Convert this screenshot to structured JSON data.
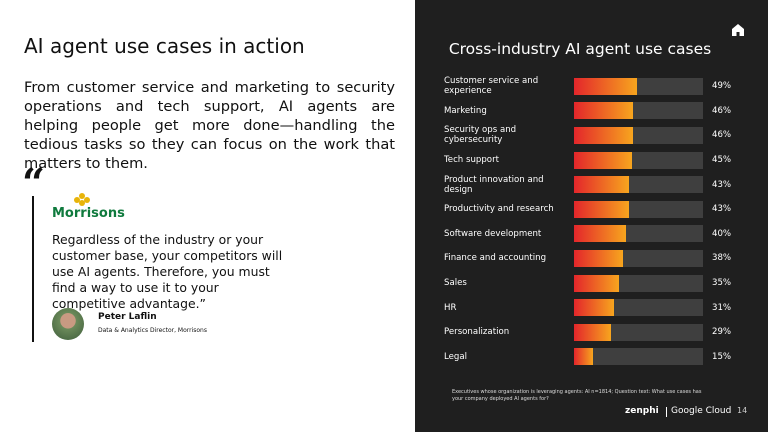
{
  "slide": {
    "title": "AI agent use cases in action",
    "body": "From customer service and marketing to security operations and tech support, AI agents are helping people get more done—handling the tedious tasks so they can focus on the work that matters to them.",
    "quote_mark": "“",
    "logo": "Morrisons",
    "quote": "Regardless of the industry or your customer base, your competitors will use AI agents. Therefore, you must find a way to use it to your competitive advantage.”",
    "name": "Peter Laflin",
    "role": "Data & Analytics Director, Morrisons"
  },
  "chart_data": {
    "type": "bar",
    "orientation": "horizontal",
    "title": "Cross-industry AI agent use cases",
    "categories": [
      "Customer service and experience",
      "Marketing",
      "Security ops and cybersecurity",
      "Tech support",
      "Product innovation and design",
      "Productivity and research",
      "Software development",
      "Finance and accounting",
      "Sales",
      "HR",
      "Personalization",
      "Legal"
    ],
    "values": [
      49,
      46,
      46,
      45,
      43,
      43,
      40,
      38,
      35,
      31,
      29,
      15
    ],
    "value_labels": [
      "49%",
      "46%",
      "46%",
      "45%",
      "43%",
      "43%",
      "40%",
      "38%",
      "35%",
      "31%",
      "29%",
      "15%"
    ],
    "xlim": [
      0,
      100
    ],
    "colors": [
      "#e3262b",
      "#f7a51e"
    ],
    "track_color": "#3f3f3f",
    "note": "Executives whose organization is leveraging agents: AI n=1814; Question text: What use cases has your company deployed AI agents for?"
  },
  "footer": {
    "brand": "zenphi",
    "partner": "Google Cloud",
    "page": "14"
  }
}
